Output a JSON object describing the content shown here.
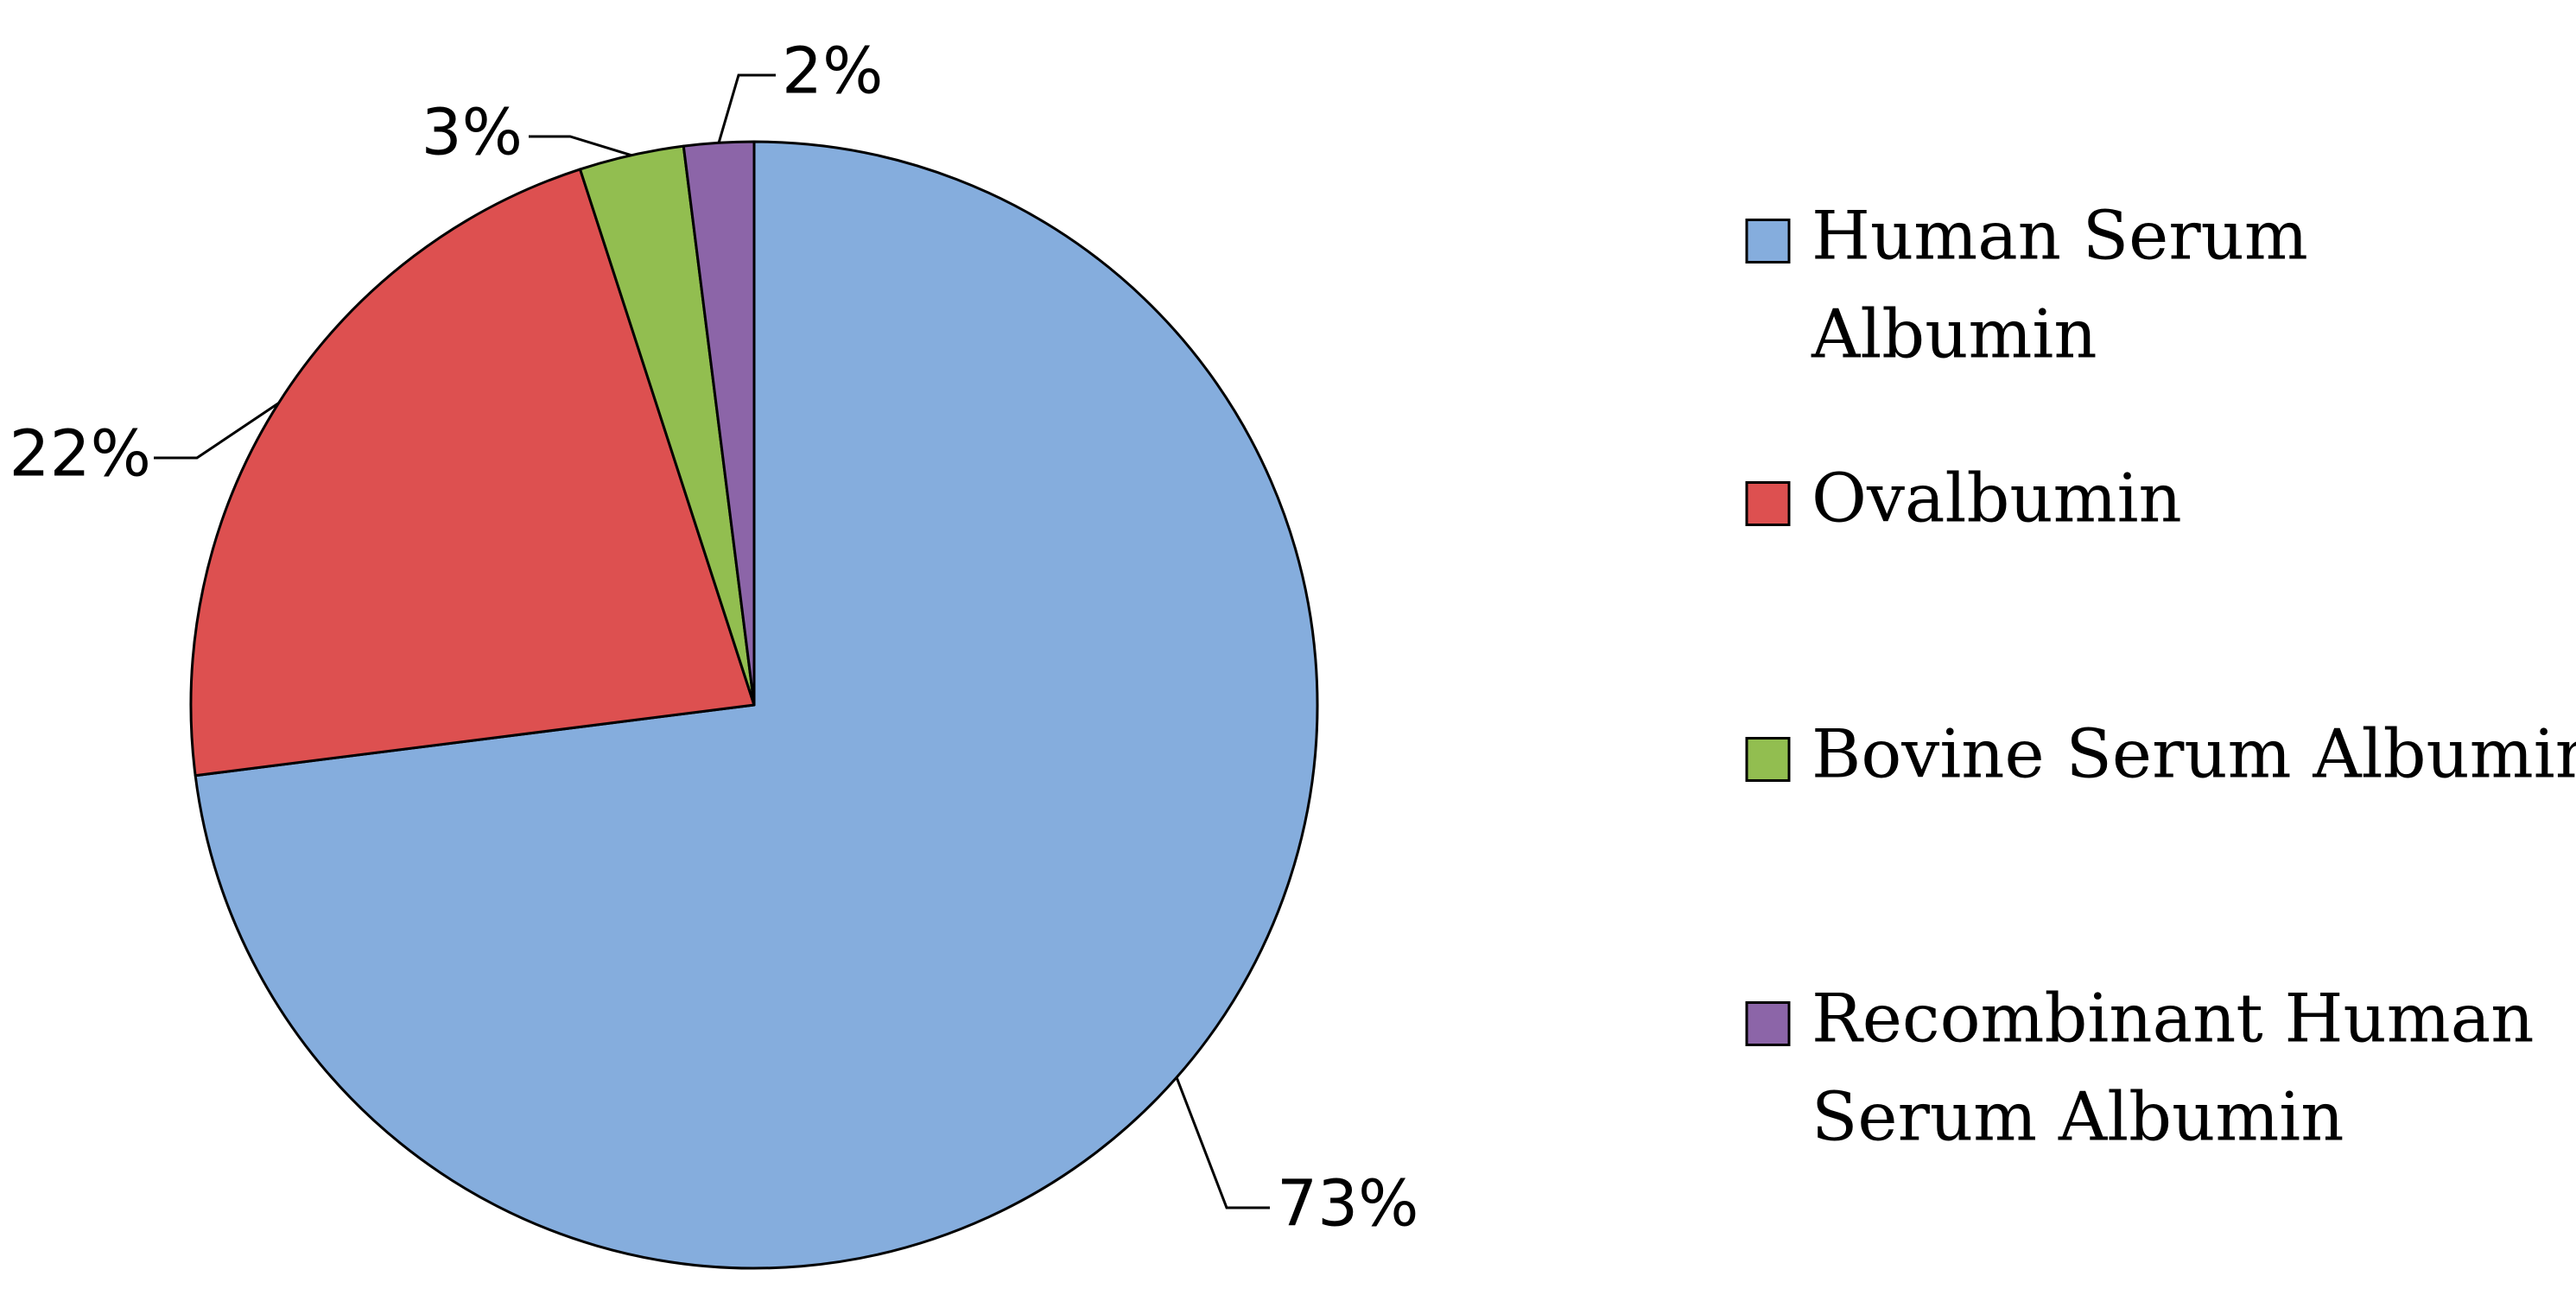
{
  "chart_data": {
    "type": "pie",
    "title": "",
    "legend_position": "right",
    "slices": [
      {
        "label": "Human Serum Albumin",
        "value": 73,
        "value_label": "73%",
        "color": "#85ADDD",
        "legend_lines": [
          "Human Serum",
          "Albumin"
        ]
      },
      {
        "label": "Ovalbumin",
        "value": 22,
        "value_label": "22%",
        "color": "#DD5050",
        "legend_lines": [
          "Ovalbumin"
        ]
      },
      {
        "label": "Bovine Serum Albumin",
        "value": 3,
        "value_label": "3%",
        "color": "#92BE50",
        "legend_lines": [
          "Bovine Serum Albumin"
        ]
      },
      {
        "label": "Recombinant Human Serum Albumin",
        "value": 2,
        "value_label": "2%",
        "color": "#8C65A8",
        "legend_lines": [
          "Recombinant Human",
          "Serum Albumin"
        ]
      }
    ]
  }
}
